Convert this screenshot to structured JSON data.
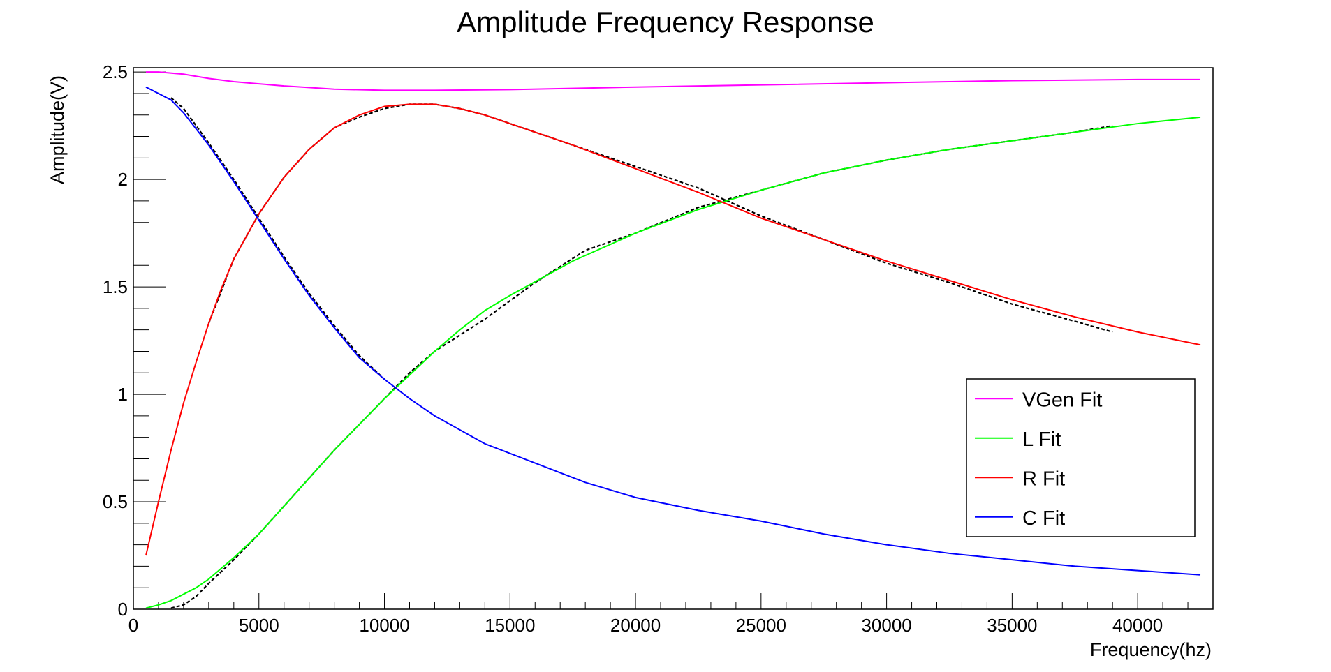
{
  "chart_data": {
    "type": "line",
    "title": "Amplitude Frequency Response",
    "xlabel": "Frequency(hz)",
    "ylabel": "Amplitude(V)",
    "xlim": [
      0,
      43000
    ],
    "ylim": [
      0,
      2.52
    ],
    "x_ticks": [
      0,
      5000,
      10000,
      15000,
      20000,
      25000,
      30000,
      35000,
      40000
    ],
    "x_tick_labels": [
      "0",
      "5000",
      "10000",
      "15000",
      "20000",
      "25000",
      "30000",
      "35000",
      "40000"
    ],
    "y_ticks": [
      0,
      0.5,
      1,
      1.5,
      2,
      2.5
    ],
    "y_tick_labels": [
      "0",
      "0.5",
      "1",
      "1.5",
      "2",
      "2.5"
    ],
    "grid": false,
    "legend_position": "right",
    "series": [
      {
        "name": "VGen Fit",
        "color": "#ff00ff",
        "x": [
          500,
          1000,
          2000,
          3000,
          4000,
          5000,
          6000,
          7000,
          8000,
          10000,
          12000,
          15000,
          18000,
          20000,
          25000,
          30000,
          35000,
          40000,
          42500
        ],
        "y": [
          2.5,
          2.5,
          2.49,
          2.47,
          2.455,
          2.445,
          2.435,
          2.428,
          2.42,
          2.415,
          2.415,
          2.418,
          2.425,
          2.43,
          2.44,
          2.45,
          2.46,
          2.465,
          2.465
        ]
      },
      {
        "name": "L Fit",
        "color": "#00ff00",
        "x": [
          500,
          1000,
          1500,
          2000,
          2500,
          3000,
          4000,
          5000,
          6000,
          7000,
          8000,
          9000,
          10000,
          11000,
          12000,
          13000,
          14000,
          15000,
          17500,
          20000,
          22500,
          25000,
          27500,
          30000,
          32500,
          35000,
          37500,
          40000,
          42500
        ],
        "y": [
          0.005,
          0.02,
          0.04,
          0.07,
          0.1,
          0.14,
          0.24,
          0.35,
          0.48,
          0.61,
          0.74,
          0.86,
          0.98,
          1.09,
          1.2,
          1.3,
          1.39,
          1.46,
          1.62,
          1.75,
          1.86,
          1.95,
          2.03,
          2.09,
          2.14,
          2.18,
          2.22,
          2.26,
          2.29
        ]
      },
      {
        "name": "R Fit",
        "color": "#ff0000",
        "x": [
          500,
          1000,
          1500,
          2000,
          2500,
          3000,
          3500,
          4000,
          5000,
          6000,
          7000,
          8000,
          9000,
          10000,
          11000,
          12000,
          13000,
          14000,
          15000,
          17500,
          20000,
          22500,
          25000,
          27500,
          30000,
          32500,
          35000,
          37500,
          40000,
          42500
        ],
        "y": [
          0.25,
          0.5,
          0.74,
          0.96,
          1.15,
          1.33,
          1.49,
          1.63,
          1.84,
          2.01,
          2.14,
          2.24,
          2.3,
          2.34,
          2.35,
          2.35,
          2.33,
          2.3,
          2.26,
          2.16,
          2.05,
          1.94,
          1.82,
          1.72,
          1.62,
          1.53,
          1.44,
          1.36,
          1.29,
          1.23
        ]
      },
      {
        "name": "C Fit",
        "color": "#0000ff",
        "x": [
          500,
          1500,
          2000,
          3000,
          4000,
          5000,
          6000,
          7000,
          8000,
          9000,
          10000,
          11000,
          12000,
          14000,
          16000,
          18000,
          20000,
          22500,
          25000,
          27500,
          30000,
          32500,
          35000,
          37500,
          40000,
          42500
        ],
        "y": [
          2.43,
          2.37,
          2.31,
          2.16,
          1.99,
          1.81,
          1.63,
          1.46,
          1.31,
          1.17,
          1.07,
          0.98,
          0.9,
          0.77,
          0.68,
          0.59,
          0.52,
          0.46,
          0.41,
          0.35,
          0.3,
          0.26,
          0.23,
          0.2,
          0.18,
          0.16
        ]
      }
    ],
    "measured_data": {
      "color": "#000000",
      "series": [
        {
          "name": "",
          "x": [
            1500,
            2000,
            2500,
            3000,
            4000,
            5000,
            6000,
            7000,
            8000,
            9000,
            10000,
            11000,
            12000,
            14000,
            16000,
            18000,
            20000,
            22500,
            25000,
            27500,
            30000,
            32500,
            35000,
            37500,
            39000
          ],
          "y": [
            0.005,
            0.02,
            0.06,
            0.12,
            0.23,
            0.35,
            0.48,
            0.61,
            0.74,
            0.86,
            0.98,
            1.1,
            1.2,
            1.35,
            1.52,
            1.67,
            1.75,
            1.87,
            1.95,
            2.03,
            2.09,
            2.14,
            2.18,
            2.22,
            2.25
          ]
        },
        {
          "name": "",
          "x": [
            3000,
            4000,
            5000,
            6000,
            7000,
            8000,
            9000,
            10000,
            11000,
            12000,
            13000,
            14000,
            15000,
            17500,
            20000,
            22500,
            25000,
            27500,
            30000,
            32500,
            35000,
            37500,
            39000
          ],
          "y": [
            1.33,
            1.63,
            1.84,
            2.01,
            2.14,
            2.24,
            2.29,
            2.33,
            2.35,
            2.35,
            2.33,
            2.3,
            2.26,
            2.16,
            2.06,
            1.96,
            1.83,
            1.72,
            1.61,
            1.52,
            1.42,
            1.34,
            1.29
          ]
        },
        {
          "name": "",
          "x": [
            1500,
            2000,
            3000,
            4000,
            5000,
            6000,
            7000,
            8000,
            9000,
            10000
          ],
          "y": [
            2.38,
            2.33,
            2.17,
            2.0,
            1.82,
            1.64,
            1.47,
            1.32,
            1.18,
            1.07
          ]
        }
      ]
    }
  }
}
